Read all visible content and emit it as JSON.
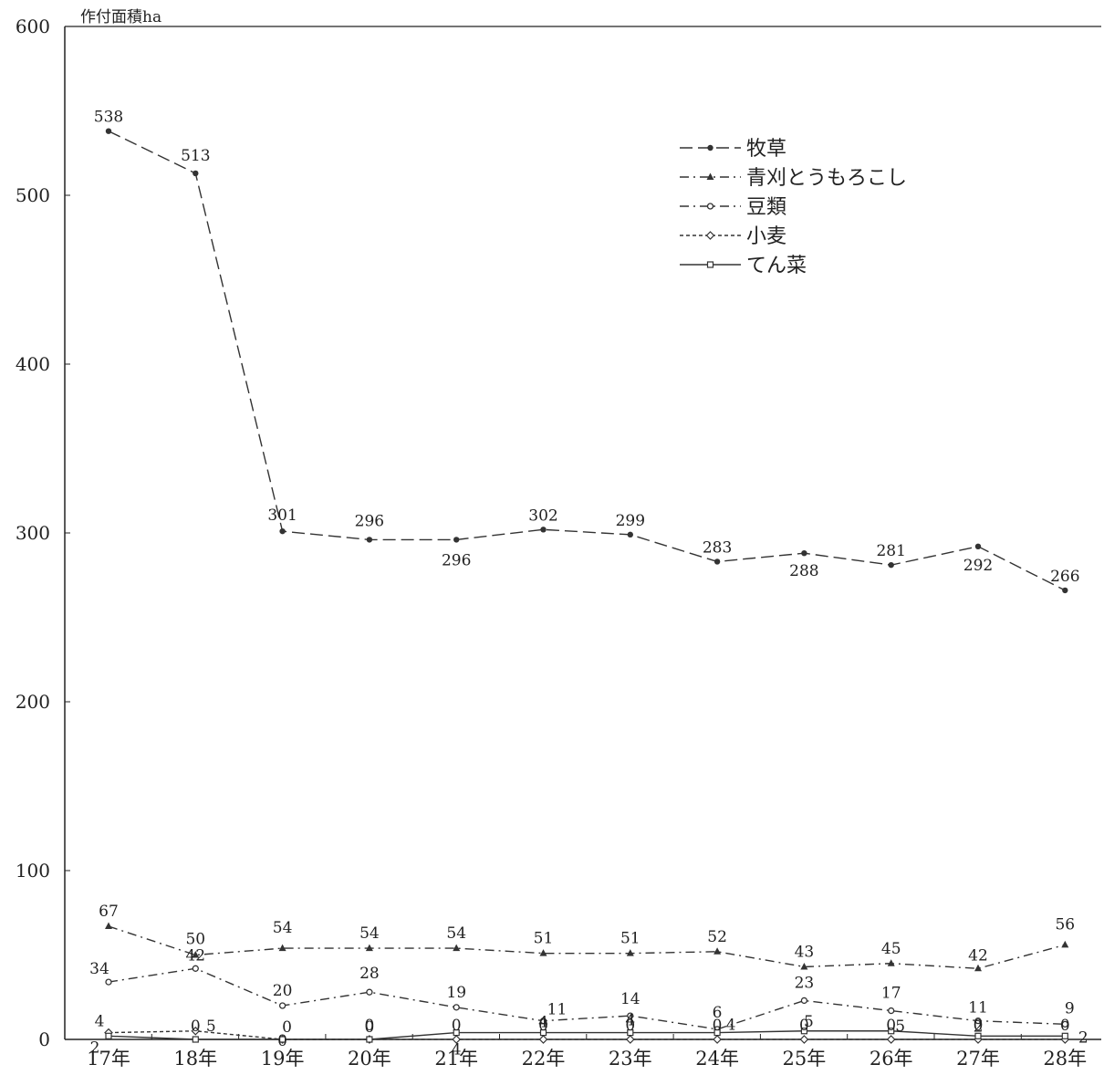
{
  "chart_data": {
    "type": "line",
    "unit_label": "作付面積ha",
    "categories": [
      "17年",
      "18年",
      "19年",
      "20年",
      "21年",
      "22年",
      "23年",
      "24年",
      "25年",
      "26年",
      "27年",
      "28年"
    ],
    "ylim": [
      0,
      600
    ],
    "yticks": [
      0,
      100,
      200,
      300,
      400,
      500,
      600
    ],
    "grid": false,
    "legend_position": "top-right",
    "series": [
      {
        "name": "牧草",
        "values": [
          538,
          513,
          301,
          296,
          296,
          302,
          299,
          283,
          288,
          281,
          292,
          266
        ],
        "dash": "long-dash",
        "marker": "dot",
        "color": "#333333"
      },
      {
        "name": "青刈とうもろこし",
        "values": [
          67,
          50,
          54,
          54,
          54,
          51,
          51,
          52,
          43,
          45,
          42,
          56
        ],
        "dash": "dash-dot",
        "marker": "triangle",
        "color": "#333333"
      },
      {
        "name": "豆類",
        "values": [
          34,
          42,
          20,
          28,
          19,
          11,
          14,
          6,
          23,
          17,
          11,
          9
        ],
        "dash": "dash-dot",
        "marker": "open-circle",
        "color": "#333333"
      },
      {
        "name": "小麦",
        "values": [
          4,
          5,
          0,
          0,
          0,
          0,
          0,
          0,
          0,
          0,
          0,
          0
        ],
        "dash": "short-dash",
        "marker": "diamond",
        "color": "#333333"
      },
      {
        "name": "てん菜",
        "values": [
          2,
          0,
          0,
          0,
          4,
          4,
          4,
          4,
          5,
          5,
          2,
          2
        ],
        "dash": "solid",
        "marker": "open-square",
        "color": "#333333"
      }
    ]
  }
}
